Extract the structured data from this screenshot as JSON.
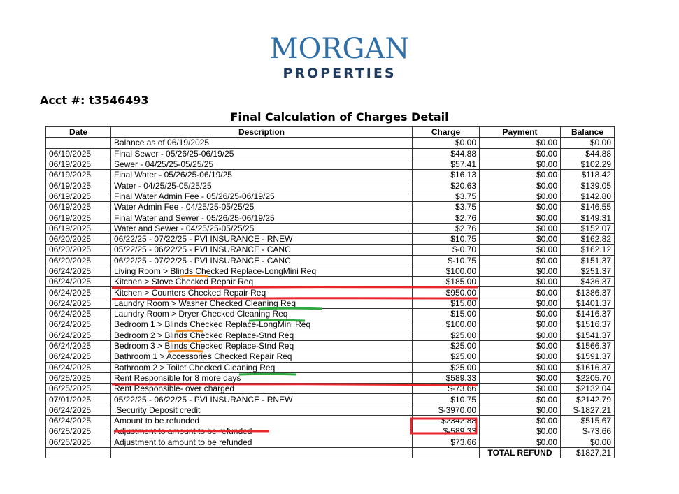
{
  "logo": {
    "line1": "MORGAN",
    "line2": "PROPERTIES"
  },
  "account": {
    "label": "Acct #: t3546493"
  },
  "title": "Final Calculation of Charges Detail",
  "columns": [
    "Date",
    "Description",
    "Charge",
    "Payment",
    "Balance"
  ],
  "rows": [
    {
      "date": "",
      "description": "Balance as of 06/19/2025",
      "charge": "$0.00",
      "payment": "$0.00",
      "balance": "$0.00"
    },
    {
      "date": "06/19/2025",
      "description": "Final Sewer - 05/26/25-06/19/25",
      "charge": "$44.88",
      "payment": "$0.00",
      "balance": "$44.88"
    },
    {
      "date": "06/19/2025",
      "description": "Sewer - 04/25/25-05/25/25",
      "charge": "$57.41",
      "payment": "$0.00",
      "balance": "$102.29"
    },
    {
      "date": "06/19/2025",
      "description": "Final Water - 05/26/25-06/19/25",
      "charge": "$16.13",
      "payment": "$0.00",
      "balance": "$118.42"
    },
    {
      "date": "06/19/2025",
      "description": "Water - 04/25/25-05/25/25",
      "charge": "$20.63",
      "payment": "$0.00",
      "balance": "$139.05"
    },
    {
      "date": "06/19/2025",
      "description": "Final Water Admin Fee - 05/26/25-06/19/25",
      "charge": "$3.75",
      "payment": "$0.00",
      "balance": "$142.80"
    },
    {
      "date": "06/19/2025",
      "description": "Water Admin Fee - 04/25/25-05/25/25",
      "charge": "$3.75",
      "payment": "$0.00",
      "balance": "$146.55"
    },
    {
      "date": "06/19/2025",
      "description": "Final Water and Sewer - 05/26/25-06/19/25",
      "charge": "$2.76",
      "payment": "$0.00",
      "balance": "$149.31"
    },
    {
      "date": "06/19/2025",
      "description": "Water and Sewer - 04/25/25-05/25/25",
      "charge": "$2.76",
      "payment": "$0.00",
      "balance": "$152.07"
    },
    {
      "date": "06/20/2025",
      "description": "06/22/25 - 07/22/25 - PVI INSURANCE - RNEW",
      "charge": "$10.75",
      "payment": "$0.00",
      "balance": "$162.82"
    },
    {
      "date": "06/20/2025",
      "description": "05/22/25 - 06/22/25 - PVI INSURANCE - CANC",
      "charge": "$-0.70",
      "payment": "$0.00",
      "balance": "$162.12"
    },
    {
      "date": "06/20/2025",
      "description": "06/22/25 - 07/22/25 - PVI INSURANCE - CANC",
      "charge": "$-10.75",
      "payment": "$0.00",
      "balance": "$151.37"
    },
    {
      "date": "06/24/2025",
      "description": "Living Room > Blinds Checked Replace-LongMini Req",
      "charge": "$100.00",
      "payment": "$0.00",
      "balance": "$251.37"
    },
    {
      "date": "06/24/2025",
      "description": "Kitchen > Stove Checked Repair Req",
      "charge": "$185.00",
      "payment": "$0.00",
      "balance": "$436.37"
    },
    {
      "date": "06/24/2025",
      "description": "Kitchen > Counters Checked Repair Req",
      "charge": "$950.00",
      "payment": "$0.00",
      "balance": "$1386.37"
    },
    {
      "date": "06/24/2025",
      "description": "Laundry Room > Washer Checked Cleaning Req",
      "charge": "$15.00",
      "payment": "$0.00",
      "balance": "$1401.37"
    },
    {
      "date": "06/24/2025",
      "description": "Laundry Room > Dryer Checked Cleaning Req",
      "charge": "$15.00",
      "payment": "$0.00",
      "balance": "$1416.37"
    },
    {
      "date": "06/24/2025",
      "description": "Bedroom 1 > Blinds Checked Replace-LongMini Req",
      "charge": "$100.00",
      "payment": "$0.00",
      "balance": "$1516.37"
    },
    {
      "date": "06/24/2025",
      "description": "Bedroom 2 > Blinds Checked Replace-Stnd Req",
      "charge": "$25.00",
      "payment": "$0.00",
      "balance": "$1541.37"
    },
    {
      "date": "06/24/2025",
      "description": "Bedroom 3 > Blinds Checked Replace-Stnd Req",
      "charge": "$25.00",
      "payment": "$0.00",
      "balance": "$1566.37"
    },
    {
      "date": "06/24/2025",
      "description": "Bathroom 1 > Accessories Checked Repair Req",
      "charge": "$25.00",
      "payment": "$0.00",
      "balance": "$1591.37"
    },
    {
      "date": "06/24/2025",
      "description": "Bathroom 2 > Toilet Checked Cleaning Req",
      "charge": "$25.00",
      "payment": "$0.00",
      "balance": "$1616.37"
    },
    {
      "date": "06/25/2025",
      "description": "Rent Responsible for 8 more days",
      "charge": "$589.33",
      "payment": "$0.00",
      "balance": "$2205.70"
    },
    {
      "date": "06/25/2025",
      "description": "Rent Responsible- over charged",
      "charge": "$-73.66",
      "payment": "$0.00",
      "balance": "$2132.04"
    },
    {
      "date": "07/01/2025",
      "description": "05/22/25 - 06/22/25 - PVI INSURANCE - RNEW",
      "charge": "$10.75",
      "payment": "$0.00",
      "balance": "$2142.79"
    },
    {
      "date": "06/24/2025",
      "description": ":Security Deposit credit",
      "charge": "$-3970.00",
      "payment": "$0.00",
      "balance": "$-1827.21"
    },
    {
      "date": "06/24/2025",
      "description": "Amount to be refunded",
      "charge": "$2342.88",
      "payment": "$0.00",
      "balance": "$515.67"
    },
    {
      "date": "06/25/2025",
      "description": "Adjustment to amount to be refunded",
      "charge": "$-589.33",
      "payment": "$0.00",
      "balance": "$-73.66"
    },
    {
      "date": "06/25/2025",
      "description": "Adjustment to amount to be refunded",
      "charge": "$73.66",
      "payment": "$0.00",
      "balance": "$0.00"
    }
  ],
  "total": {
    "label": "TOTAL REFUND",
    "value": "$1827.21"
  },
  "annotation_colors": {
    "red": "#e8262b",
    "orange": "#f08a24",
    "green": "#2ea83f"
  }
}
